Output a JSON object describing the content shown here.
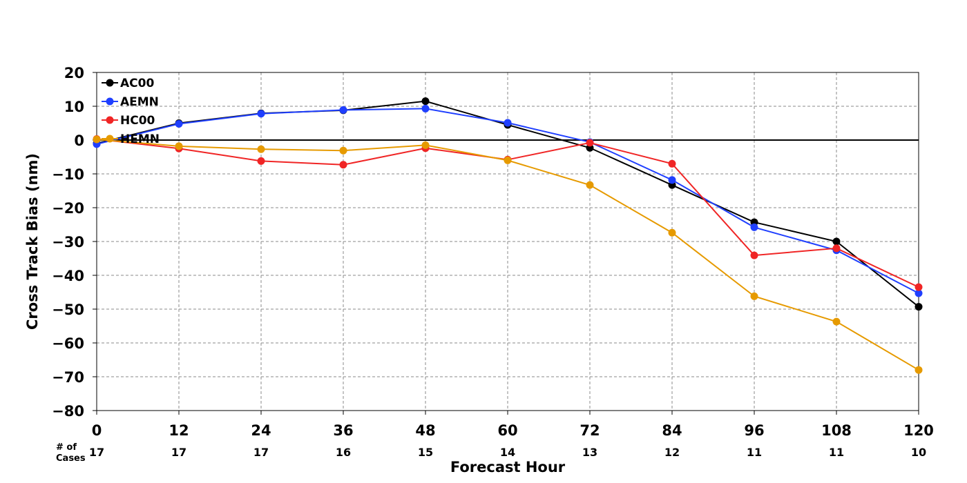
{
  "chart_data": {
    "type": "line",
    "title": "",
    "xlabel": "Forecast Hour",
    "ylabel": "Cross Track Bias (nm)",
    "x": [
      0,
      12,
      24,
      36,
      48,
      60,
      72,
      84,
      96,
      108,
      120
    ],
    "xlim": [
      0,
      120
    ],
    "ylim": [
      -80,
      20
    ],
    "yticks": [
      20,
      10,
      0,
      -10,
      -20,
      -30,
      -40,
      -50,
      -60,
      -70,
      -80
    ],
    "ytick_labels": [
      "20",
      "10",
      "0",
      "−10",
      "−20",
      "−30",
      "−40",
      "−50",
      "−60",
      "−70",
      "−80"
    ],
    "xtick_labels": [
      "0",
      "12",
      "24",
      "36",
      "48",
      "60",
      "72",
      "84",
      "96",
      "108",
      "120"
    ],
    "cases_label_line1": "# of",
    "cases_label_line2": "Cases",
    "cases": [
      "17",
      "17",
      "17",
      "16",
      "15",
      "14",
      "13",
      "12",
      "11",
      "11",
      "10"
    ],
    "grid": true,
    "legend_position": "top-left",
    "series": [
      {
        "name": "AC00",
        "color": "#000000",
        "values": [
          -1.0,
          5.0,
          7.9,
          8.8,
          11.5,
          4.5,
          -2.3,
          -13.3,
          -24.3,
          -30.0,
          -49.3
        ]
      },
      {
        "name": "AEMN",
        "color": "#1f3fff",
        "values": [
          -1.2,
          4.8,
          7.8,
          8.9,
          9.3,
          5.1,
          -0.6,
          -11.8,
          -25.8,
          -32.6,
          -45.3
        ]
      },
      {
        "name": "HC00",
        "color": "#f02525",
        "values": [
          0.3,
          -2.5,
          -6.2,
          -7.3,
          -2.4,
          -5.8,
          -0.8,
          -7.0,
          -34.1,
          -32.0,
          -43.5
        ]
      },
      {
        "name": "HEMN",
        "color": "#e69a00",
        "values": [
          0.2,
          -1.8,
          -2.7,
          -3.1,
          -1.5,
          -6.0,
          -13.3,
          -27.4,
          -46.2,
          -53.7,
          -68.0
        ]
      }
    ]
  }
}
